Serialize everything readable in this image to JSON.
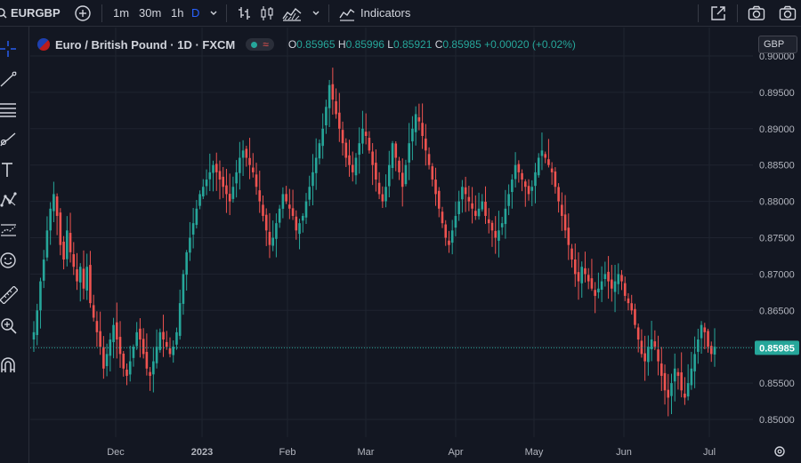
{
  "toolbar": {
    "symbol": "EURGBP",
    "intervals": [
      "1m",
      "30m",
      "1h",
      "D"
    ],
    "indicators_label": "Indicators"
  },
  "legend": {
    "title": "Euro / British Pound · 1D · FXCM",
    "open_label": "O",
    "open": "0.85965",
    "high_label": "H",
    "high": "0.85996",
    "low_label": "L",
    "low": "0.85921",
    "close_label": "C",
    "close": "0.85985",
    "change": "+0.00020 (+0.02%)"
  },
  "currency_badge": "GBP",
  "colors": {
    "up": "#26a69a",
    "down": "#ef5350",
    "price_line": "#26a69a",
    "background": "#131722"
  },
  "left_tools": [
    "crosshair-icon",
    "trendline-icon",
    "fib-icon",
    "brush-icon",
    "text-icon",
    "pattern-icon",
    "forecast-icon",
    "emoji-icon",
    "ruler-icon",
    "zoom-in-icon",
    "magnet-icon"
  ],
  "chart_data": {
    "type": "candlestick",
    "current_price": "0.85985",
    "y_ticks": [
      "0.90000",
      "0.89500",
      "0.89000",
      "0.88500",
      "0.88000",
      "0.87500",
      "0.87000",
      "0.86500",
      "0.86000",
      "0.85500",
      "0.85000"
    ],
    "x_ticks": [
      "Dec",
      "2023",
      "Feb",
      "Mar",
      "Apr",
      "May",
      "Jun",
      "Jul"
    ],
    "ylim": [
      0.8485,
      0.9005
    ],
    "approx_closes": [
      0.862,
      0.865,
      0.869,
      0.872,
      0.876,
      0.879,
      0.881,
      0.878,
      0.874,
      0.872,
      0.876,
      0.873,
      0.871,
      0.869,
      0.871,
      0.868,
      0.871,
      0.866,
      0.864,
      0.862,
      0.86,
      0.857,
      0.859,
      0.861,
      0.863,
      0.861,
      0.859,
      0.857,
      0.856,
      0.858,
      0.86,
      0.862,
      0.861,
      0.859,
      0.857,
      0.856,
      0.858,
      0.86,
      0.862,
      0.861,
      0.86,
      0.859,
      0.86,
      0.862,
      0.866,
      0.87,
      0.873,
      0.875,
      0.877,
      0.879,
      0.881,
      0.882,
      0.883,
      0.884,
      0.885,
      0.884,
      0.883,
      0.882,
      0.881,
      0.88,
      0.882,
      0.884,
      0.886,
      0.887,
      0.886,
      0.885,
      0.884,
      0.882,
      0.88,
      0.878,
      0.876,
      0.874,
      0.875,
      0.877,
      0.879,
      0.881,
      0.88,
      0.879,
      0.878,
      0.876,
      0.877,
      0.878,
      0.88,
      0.882,
      0.884,
      0.886,
      0.888,
      0.89,
      0.893,
      0.896,
      0.894,
      0.892,
      0.89,
      0.888,
      0.886,
      0.885,
      0.884,
      0.886,
      0.888,
      0.89,
      0.889,
      0.887,
      0.885,
      0.883,
      0.881,
      0.88,
      0.882,
      0.885,
      0.888,
      0.886,
      0.884,
      0.882,
      0.885,
      0.888,
      0.89,
      0.892,
      0.891,
      0.889,
      0.887,
      0.885,
      0.883,
      0.881,
      0.879,
      0.877,
      0.875,
      0.874,
      0.876,
      0.878,
      0.88,
      0.882,
      0.881,
      0.88,
      0.879,
      0.878,
      0.879,
      0.88,
      0.878,
      0.877,
      0.876,
      0.875,
      0.876,
      0.877,
      0.879,
      0.881,
      0.883,
      0.885,
      0.884,
      0.883,
      0.882,
      0.881,
      0.882,
      0.884,
      0.886,
      0.887,
      0.886,
      0.885,
      0.884,
      0.882,
      0.88,
      0.878,
      0.876,
      0.874,
      0.872,
      0.87,
      0.869,
      0.871,
      0.87,
      0.869,
      0.868,
      0.867,
      0.868,
      0.869,
      0.87,
      0.869,
      0.868,
      0.869,
      0.87,
      0.869,
      0.867,
      0.866,
      0.865,
      0.863,
      0.861,
      0.859,
      0.858,
      0.86,
      0.861,
      0.86,
      0.858,
      0.856,
      0.854,
      0.853,
      0.855,
      0.857,
      0.856,
      0.854,
      0.853,
      0.855,
      0.857,
      0.859,
      0.861,
      0.863,
      0.862,
      0.86,
      0.859,
      0.86
    ]
  }
}
